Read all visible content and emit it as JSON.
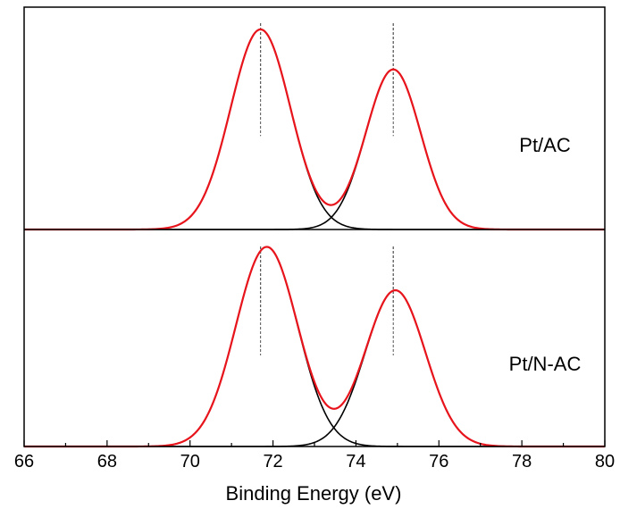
{
  "chart_data": {
    "type": "line",
    "xlabel": "Binding Energy (eV)",
    "ylabel": "",
    "xlim": [
      66,
      80
    ],
    "x_ticks": [
      66,
      68,
      70,
      72,
      74,
      76,
      78,
      80
    ],
    "grid": false,
    "colors": {
      "components": "#000000",
      "envelope": "#e8141c",
      "reference": "#555555",
      "axis": "#000000"
    },
    "reference_lines": [
      71.7,
      74.9
    ],
    "panels": [
      {
        "label": "Pt/AC",
        "ylim": [
          0,
          1.0
        ],
        "peaks": [
          {
            "center": 71.7,
            "height": 0.9,
            "fwhm": 1.7
          },
          {
            "center": 74.9,
            "height": 0.72,
            "fwhm": 1.55
          }
        ]
      },
      {
        "label": "Pt/N-AC",
        "ylim": [
          0,
          1.0
        ],
        "peaks": [
          {
            "center": 71.85,
            "height": 0.92,
            "fwhm": 1.75
          },
          {
            "center": 74.95,
            "height": 0.72,
            "fwhm": 1.7
          }
        ]
      }
    ]
  }
}
